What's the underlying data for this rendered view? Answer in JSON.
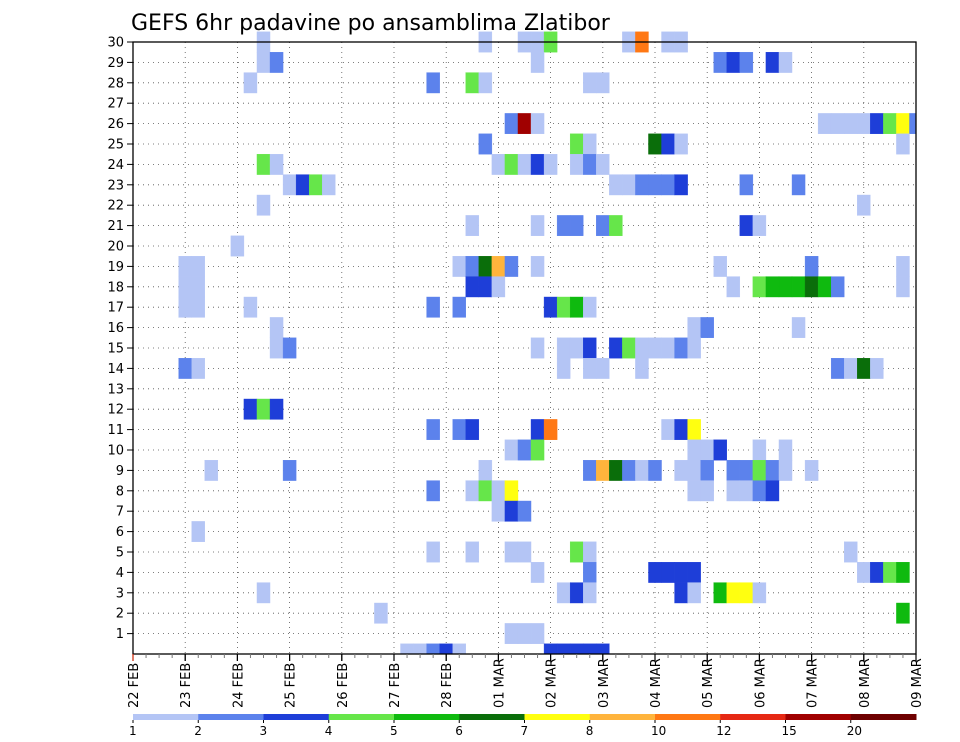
{
  "chart_data": {
    "type": "heatmap",
    "title": "GEFS 6hr padavine po ansamblima Zlatibor",
    "xlabel": "",
    "ylabel": "",
    "x_ticks": [
      "22 FEB",
      "23 FEB",
      "24 FEB",
      "25 FEB",
      "26 FEB",
      "27 FEB",
      "28 FEB",
      "01 MAR",
      "02 MAR",
      "03 MAR",
      "04 MAR",
      "05 MAR",
      "06 MAR",
      "07 MAR",
      "08 MAR",
      "09 MAR"
    ],
    "y_ticks": [
      "1",
      "2",
      "3",
      "4",
      "5",
      "6",
      "7",
      "8",
      "9",
      "10",
      "11",
      "12",
      "13",
      "14",
      "15",
      "16",
      "17",
      "18",
      "19",
      "20",
      "21",
      "22",
      "23",
      "24",
      "25",
      "26",
      "27",
      "28",
      "29",
      "30"
    ],
    "xlim": [
      0,
      60
    ],
    "ylim": [
      0,
      30
    ],
    "grid": true,
    "legend": {
      "placement": "bottom",
      "labels": [
        "1",
        "2",
        "3",
        "4",
        "5",
        "6",
        "7",
        "8",
        "10",
        "12",
        "15",
        "20"
      ],
      "colors": [
        "#b4c5f5",
        "#5c82ec",
        "#1e3ed8",
        "#66e64a",
        "#0fba0f",
        "#0a6e0a",
        "#ffff10",
        "#ffb43c",
        "#ff7814",
        "#e62814",
        "#a00000",
        "#6e0000"
      ]
    },
    "cells": [
      [
        10,
        30,
        1
      ],
      [
        27,
        30,
        1
      ],
      [
        30,
        30,
        1
      ],
      [
        31,
        30,
        1
      ],
      [
        32,
        30,
        4
      ],
      [
        38,
        30,
        1
      ],
      [
        39,
        30,
        9
      ],
      [
        41,
        30,
        1
      ],
      [
        42,
        30,
        1
      ],
      [
        10,
        29,
        1
      ],
      [
        11,
        29,
        2
      ],
      [
        31,
        29,
        1
      ],
      [
        45,
        29,
        2
      ],
      [
        46,
        29,
        3
      ],
      [
        47,
        29,
        2
      ],
      [
        49,
        29,
        3
      ],
      [
        50,
        29,
        1
      ],
      [
        9,
        28,
        1
      ],
      [
        23,
        28,
        2
      ],
      [
        26,
        28,
        4
      ],
      [
        27,
        28,
        1
      ],
      [
        35,
        28,
        1
      ],
      [
        36,
        28,
        1
      ],
      [
        29,
        26,
        2
      ],
      [
        30,
        26,
        11
      ],
      [
        31,
        26,
        1
      ],
      [
        53,
        26,
        1
      ],
      [
        54,
        26,
        1
      ],
      [
        55,
        26,
        1
      ],
      [
        56,
        26,
        1
      ],
      [
        57,
        26,
        3
      ],
      [
        58,
        26,
        4
      ],
      [
        59,
        26,
        7
      ],
      [
        60,
        26,
        2
      ],
      [
        27,
        25,
        2
      ],
      [
        34,
        25,
        4
      ],
      [
        35,
        25,
        1
      ],
      [
        40,
        25,
        6
      ],
      [
        41,
        25,
        3
      ],
      [
        42,
        25,
        1
      ],
      [
        59,
        25,
        1
      ],
      [
        10,
        24,
        4
      ],
      [
        11,
        24,
        1
      ],
      [
        28,
        24,
        1
      ],
      [
        29,
        24,
        4
      ],
      [
        30,
        24,
        1
      ],
      [
        31,
        24,
        3
      ],
      [
        32,
        24,
        1
      ],
      [
        34,
        24,
        1
      ],
      [
        35,
        24,
        2
      ],
      [
        36,
        24,
        1
      ],
      [
        12,
        23,
        1
      ],
      [
        13,
        23,
        3
      ],
      [
        14,
        23,
        4
      ],
      [
        15,
        23,
        1
      ],
      [
        37,
        23,
        1
      ],
      [
        38,
        23,
        1
      ],
      [
        39,
        23,
        2
      ],
      [
        40,
        23,
        2
      ],
      [
        41,
        23,
        2
      ],
      [
        42,
        23,
        3
      ],
      [
        47,
        23,
        2
      ],
      [
        51,
        23,
        2
      ],
      [
        10,
        22,
        1
      ],
      [
        56,
        22,
        1
      ],
      [
        26,
        21,
        1
      ],
      [
        31,
        21,
        1
      ],
      [
        33,
        21,
        2
      ],
      [
        34,
        21,
        2
      ],
      [
        36,
        21,
        2
      ],
      [
        37,
        21,
        4
      ],
      [
        47,
        21,
        3
      ],
      [
        48,
        21,
        1
      ],
      [
        8,
        20,
        1
      ],
      [
        4,
        19,
        1
      ],
      [
        5,
        19,
        1
      ],
      [
        25,
        19,
        1
      ],
      [
        26,
        19,
        2
      ],
      [
        27,
        19,
        6
      ],
      [
        28,
        19,
        8
      ],
      [
        29,
        19,
        2
      ],
      [
        31,
        19,
        1
      ],
      [
        45,
        19,
        1
      ],
      [
        52,
        19,
        2
      ],
      [
        59,
        19,
        1
      ],
      [
        4,
        18,
        1
      ],
      [
        5,
        18,
        1
      ],
      [
        26,
        18,
        3
      ],
      [
        27,
        18,
        3
      ],
      [
        28,
        18,
        1
      ],
      [
        46,
        18,
        1
      ],
      [
        48,
        18,
        4
      ],
      [
        49,
        18,
        5
      ],
      [
        50,
        18,
        5
      ],
      [
        51,
        18,
        5
      ],
      [
        52,
        18,
        6
      ],
      [
        53,
        18,
        5
      ],
      [
        54,
        18,
        2
      ],
      [
        59,
        18,
        1
      ],
      [
        4,
        17,
        1
      ],
      [
        5,
        17,
        1
      ],
      [
        9,
        17,
        1
      ],
      [
        23,
        17,
        2
      ],
      [
        25,
        17,
        2
      ],
      [
        32,
        17,
        3
      ],
      [
        33,
        17,
        4
      ],
      [
        34,
        17,
        5
      ],
      [
        35,
        17,
        1
      ],
      [
        11,
        16,
        1
      ],
      [
        43,
        16,
        1
      ],
      [
        44,
        16,
        2
      ],
      [
        51,
        16,
        1
      ],
      [
        11,
        15,
        1
      ],
      [
        12,
        15,
        2
      ],
      [
        31,
        15,
        1
      ],
      [
        33,
        15,
        1
      ],
      [
        34,
        15,
        1
      ],
      [
        35,
        15,
        3
      ],
      [
        37,
        15,
        3
      ],
      [
        38,
        15,
        4
      ],
      [
        39,
        15,
        1
      ],
      [
        40,
        15,
        1
      ],
      [
        41,
        15,
        1
      ],
      [
        42,
        15,
        2
      ],
      [
        43,
        15,
        1
      ],
      [
        4,
        14,
        2
      ],
      [
        5,
        14,
        1
      ],
      [
        33,
        14,
        1
      ],
      [
        35,
        14,
        1
      ],
      [
        36,
        14,
        1
      ],
      [
        39,
        14,
        1
      ],
      [
        54,
        14,
        2
      ],
      [
        55,
        14,
        1
      ],
      [
        56,
        14,
        6
      ],
      [
        57,
        14,
        1
      ],
      [
        9,
        12,
        3
      ],
      [
        10,
        12,
        4
      ],
      [
        11,
        12,
        3
      ],
      [
        23,
        11,
        2
      ],
      [
        25,
        11,
        2
      ],
      [
        26,
        11,
        3
      ],
      [
        31,
        11,
        3
      ],
      [
        32,
        11,
        9
      ],
      [
        41,
        11,
        1
      ],
      [
        42,
        11,
        3
      ],
      [
        43,
        11,
        7
      ],
      [
        29,
        10,
        1
      ],
      [
        30,
        10,
        2
      ],
      [
        31,
        10,
        4
      ],
      [
        43,
        10,
        1
      ],
      [
        44,
        10,
        1
      ],
      [
        45,
        10,
        3
      ],
      [
        48,
        10,
        1
      ],
      [
        50,
        10,
        1
      ],
      [
        6,
        9,
        1
      ],
      [
        12,
        9,
        2
      ],
      [
        27,
        9,
        1
      ],
      [
        35,
        9,
        2
      ],
      [
        36,
        9,
        8
      ],
      [
        37,
        9,
        6
      ],
      [
        38,
        9,
        2
      ],
      [
        39,
        9,
        1
      ],
      [
        40,
        9,
        2
      ],
      [
        42,
        9,
        1
      ],
      [
        43,
        9,
        1
      ],
      [
        44,
        9,
        2
      ],
      [
        46,
        9,
        2
      ],
      [
        47,
        9,
        2
      ],
      [
        48,
        9,
        4
      ],
      [
        49,
        9,
        2
      ],
      [
        50,
        9,
        1
      ],
      [
        52,
        9,
        1
      ],
      [
        23,
        8,
        2
      ],
      [
        26,
        8,
        1
      ],
      [
        27,
        8,
        4
      ],
      [
        28,
        8,
        1
      ],
      [
        29,
        8,
        7
      ],
      [
        43,
        8,
        1
      ],
      [
        44,
        8,
        1
      ],
      [
        46,
        8,
        1
      ],
      [
        47,
        8,
        1
      ],
      [
        48,
        8,
        2
      ],
      [
        49,
        8,
        3
      ],
      [
        28,
        7,
        1
      ],
      [
        29,
        7,
        3
      ],
      [
        30,
        7,
        2
      ],
      [
        5,
        6,
        1
      ],
      [
        23,
        5,
        1
      ],
      [
        26,
        5,
        1
      ],
      [
        29,
        5,
        1
      ],
      [
        30,
        5,
        1
      ],
      [
        34,
        5,
        4
      ],
      [
        35,
        5,
        1
      ],
      [
        55,
        5,
        1
      ],
      [
        31,
        4,
        1
      ],
      [
        35,
        4,
        2
      ],
      [
        40,
        4,
        3
      ],
      [
        41,
        4,
        3
      ],
      [
        42,
        4,
        3
      ],
      [
        43,
        4,
        3
      ],
      [
        56,
        4,
        1
      ],
      [
        57,
        4,
        3
      ],
      [
        58,
        4,
        4
      ],
      [
        59,
        4,
        5
      ],
      [
        10,
        3,
        1
      ],
      [
        33,
        3,
        1
      ],
      [
        34,
        3,
        3
      ],
      [
        35,
        3,
        1
      ],
      [
        42,
        3,
        3
      ],
      [
        43,
        3,
        1
      ],
      [
        45,
        3,
        5
      ],
      [
        46,
        3,
        7
      ],
      [
        47,
        3,
        7
      ],
      [
        48,
        3,
        1
      ],
      [
        19,
        2,
        1
      ],
      [
        59,
        2,
        5
      ],
      [
        29,
        1,
        1
      ],
      [
        30,
        1,
        1
      ],
      [
        31,
        1,
        1
      ],
      [
        21,
        0,
        1
      ],
      [
        22,
        0,
        1
      ],
      [
        23,
        0,
        2
      ],
      [
        24,
        0,
        3
      ],
      [
        25,
        0,
        1
      ],
      [
        32,
        0,
        3
      ],
      [
        33,
        0,
        3
      ],
      [
        34,
        0,
        3
      ],
      [
        35,
        0,
        3
      ],
      [
        36,
        0,
        3
      ]
    ]
  }
}
